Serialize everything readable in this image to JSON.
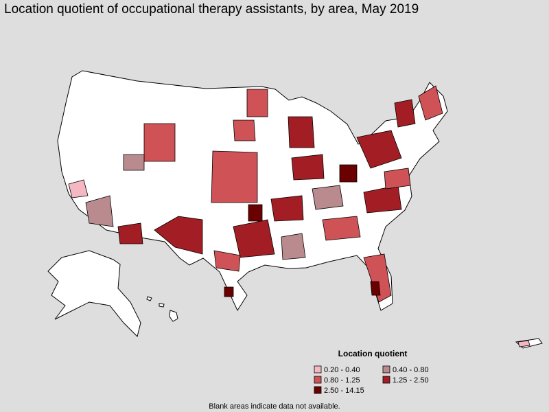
{
  "title": "Location quotient of occupational therapy assistants, by area, May 2019",
  "legend": {
    "title": "Location quotient",
    "items": [
      {
        "label": "0.20 - 0.40",
        "color": "#f5b8c2"
      },
      {
        "label": "0.40 - 0.80",
        "color": "#b98a8e"
      },
      {
        "label": "0.80 - 1.25",
        "color": "#cf5257"
      },
      {
        "label": "1.25 - 2.50",
        "color": "#a31d24"
      },
      {
        "label": "2.50 - 14.15",
        "color": "#6a0000"
      }
    ]
  },
  "note": "Blank areas indicate data not available."
}
